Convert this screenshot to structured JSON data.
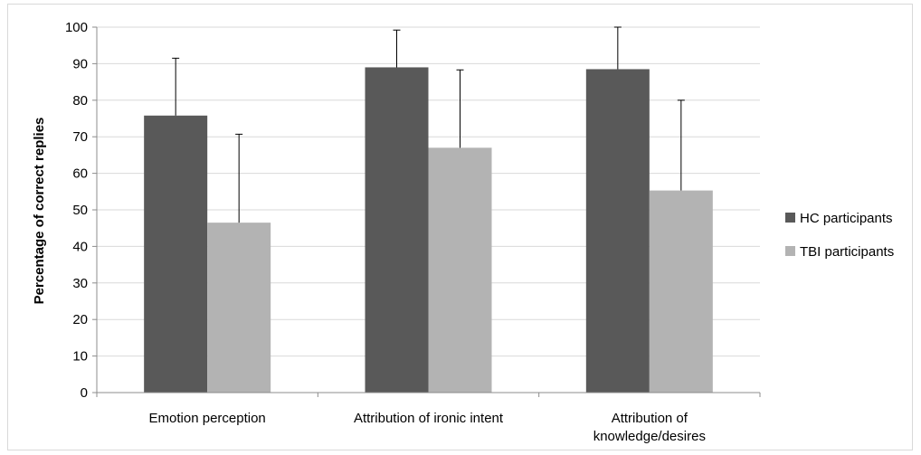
{
  "chart_data": {
    "type": "bar",
    "title": "",
    "xlabel": "",
    "ylabel": "Percentage of correct replies",
    "ylim": [
      0,
      100
    ],
    "yticks": [
      0,
      10,
      20,
      30,
      40,
      50,
      60,
      70,
      80,
      90,
      100
    ],
    "grid": true,
    "legend_position": "right",
    "categories": [
      [
        "Emotion perception"
      ],
      [
        "Attribution of ironic intent"
      ],
      [
        "Attribution of",
        "knowledge/desires"
      ]
    ],
    "series": [
      {
        "name": "HC participants",
        "color": "#595959",
        "values": [
          75.8,
          89.0,
          88.5
        ],
        "error_upper": [
          15.7,
          10.2,
          11.5
        ]
      },
      {
        "name": "TBI participants",
        "color": "#b3b3b3",
        "values": [
          46.5,
          67.0,
          55.3
        ],
        "error_upper": [
          24.2,
          21.3,
          24.7
        ]
      }
    ]
  }
}
